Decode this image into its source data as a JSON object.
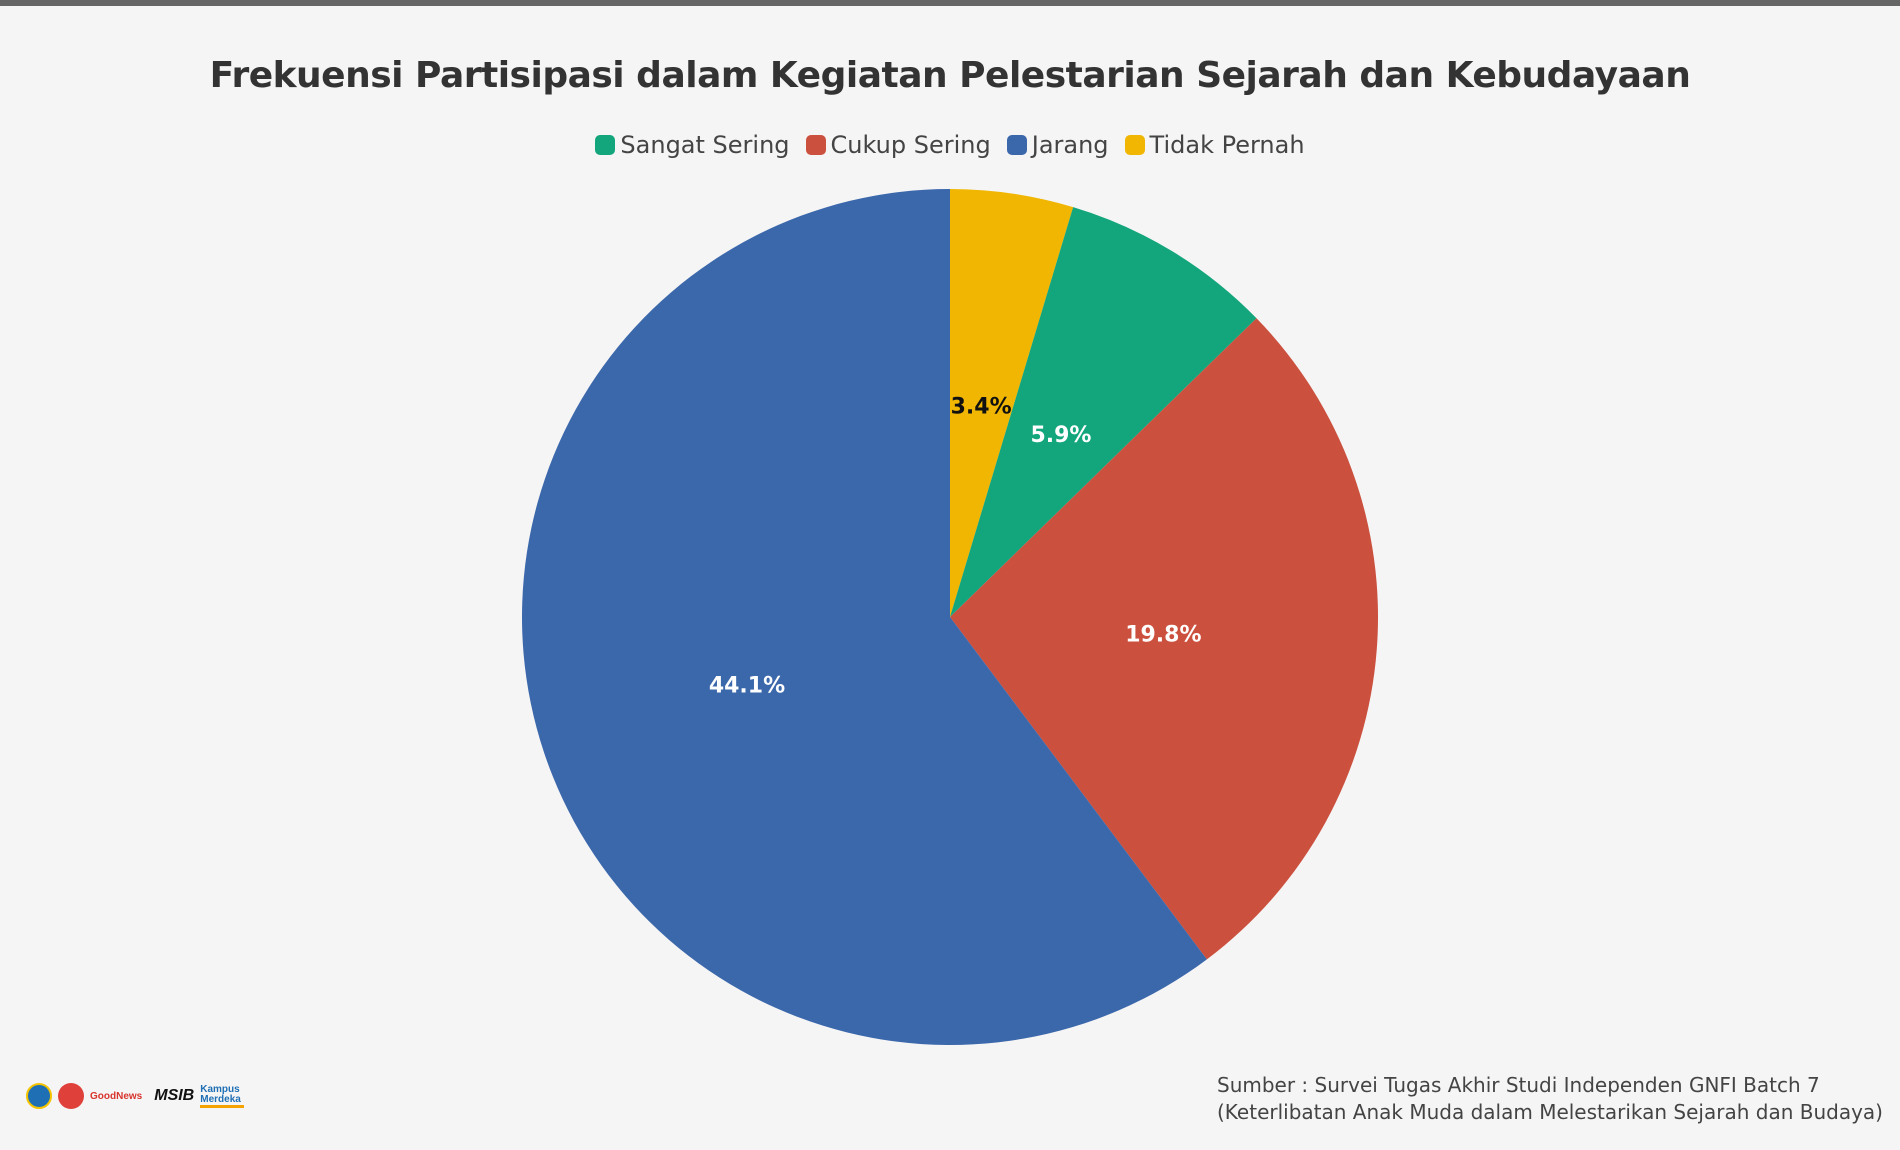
{
  "chart_data": {
    "type": "pie",
    "title": "Frekuensi Partisipasi dalam Kegiatan Pelestarian Sejarah dan Kebudayaan",
    "legend_position": "top",
    "categories": [
      "Sangat Sering",
      "Cukup Sering",
      "Jarang",
      "Tidak Pernah"
    ],
    "values": [
      5.9,
      19.8,
      44.1,
      3.4
    ],
    "value_labels": [
      "5.9%",
      "19.8%",
      "44.1%",
      "3.4%"
    ],
    "label_colors": [
      "#ffffff",
      "#ffffff",
      "#ffffff",
      "#111111"
    ],
    "colors": [
      "#13a57b",
      "#cc503e",
      "#3b67ab",
      "#f0b601"
    ],
    "slice_order": [
      3,
      0,
      1,
      2
    ]
  },
  "source": {
    "line1": "Sumber : Survei Tugas Akhir Studi Independen GNFI Batch 7",
    "line2": "(Keterlibatan Anak Muda dalam Melestarikan Sejarah dan Budaya)"
  },
  "logos": {
    "goodnews": "GoodNews",
    "msib": "MSIB",
    "kampus": "Kampus Merdeka"
  }
}
